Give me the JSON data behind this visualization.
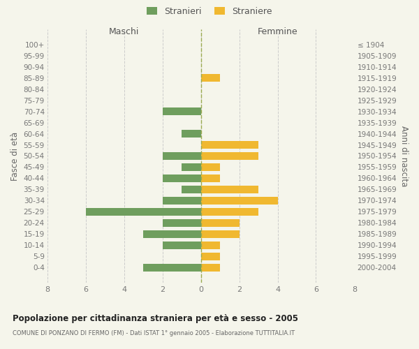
{
  "age_groups": [
    "100+",
    "95-99",
    "90-94",
    "85-89",
    "80-84",
    "75-79",
    "70-74",
    "65-69",
    "60-64",
    "55-59",
    "50-54",
    "45-49",
    "40-44",
    "35-39",
    "30-34",
    "25-29",
    "20-24",
    "15-19",
    "10-14",
    "5-9",
    "0-4"
  ],
  "birth_years": [
    "≤ 1904",
    "1905-1909",
    "1910-1914",
    "1915-1919",
    "1920-1924",
    "1925-1929",
    "1930-1934",
    "1935-1939",
    "1940-1944",
    "1945-1949",
    "1950-1954",
    "1955-1959",
    "1960-1964",
    "1965-1969",
    "1970-1974",
    "1975-1979",
    "1980-1984",
    "1985-1989",
    "1990-1994",
    "1995-1999",
    "2000-2004"
  ],
  "males": [
    0,
    0,
    0,
    0,
    0,
    0,
    2,
    0,
    1,
    0,
    2,
    1,
    2,
    1,
    2,
    6,
    2,
    3,
    2,
    0,
    3
  ],
  "females": [
    0,
    0,
    0,
    1,
    0,
    0,
    0,
    0,
    0,
    3,
    3,
    1,
    1,
    3,
    4,
    3,
    2,
    2,
    1,
    1,
    1
  ],
  "male_color": "#6f9e5e",
  "female_color": "#f0b830",
  "center_line_color": "#9aaa50",
  "grid_color": "#cccccc",
  "bg_color": "#f5f5eb",
  "title": "Popolazione per cittadinanza straniera per età e sesso - 2005",
  "subtitle": "COMUNE DI PONZANO DI FERMO (FM) - Dati ISTAT 1° gennaio 2005 - Elaborazione TUTTITALIA.IT",
  "xlabel_left": "Maschi",
  "xlabel_right": "Femmine",
  "ylabel_left": "Fasce di età",
  "ylabel_right": "Anni di nascita",
  "legend_male": "Stranieri",
  "legend_female": "Straniere",
  "xlim": 8
}
